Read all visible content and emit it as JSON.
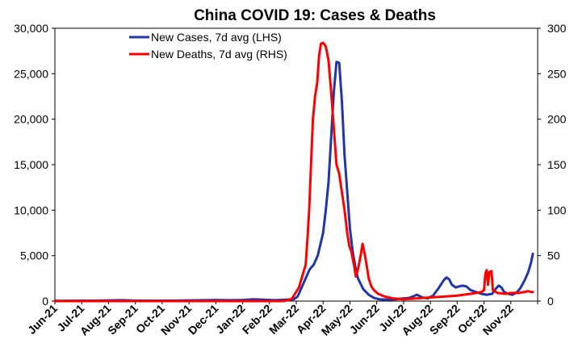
{
  "chart_data": {
    "type": "line",
    "title": "China COVID 19: Cases & Deaths",
    "x_categories": [
      "Jun-21",
      "Jul-21",
      "Aug-21",
      "Sep-21",
      "Oct-21",
      "Nov-21",
      "Dec-21",
      "Jan-22",
      "Feb-22",
      "Mar-22",
      "Apr-22",
      "May-22",
      "Jun-22",
      "Jul-22",
      "Aug-22",
      "Sep-22",
      "Oct-22",
      "Nov-22"
    ],
    "y_left": {
      "min": 0,
      "max": 30000,
      "ticks": [
        "0",
        "5,000",
        "10,000",
        "15,000",
        "20,000",
        "25,000",
        "30,000"
      ],
      "tick_values": [
        0,
        5000,
        10000,
        15000,
        20000,
        25000,
        30000
      ]
    },
    "y_right": {
      "min": 0,
      "max": 300,
      "ticks": [
        "0",
        "50",
        "100",
        "150",
        "200",
        "250",
        "300"
      ],
      "tick_values": [
        0,
        50,
        100,
        150,
        200,
        250,
        300
      ]
    },
    "legend_position": "top-left",
    "series": [
      {
        "name": "New Cases, 7d avg (LHS)",
        "axis": "left",
        "color": "#1f35a8",
        "points": [
          [
            0.0,
            30
          ],
          [
            0.5,
            30
          ],
          [
            1.0,
            40
          ],
          [
            1.5,
            50
          ],
          [
            2.0,
            80
          ],
          [
            2.5,
            100
          ],
          [
            3.0,
            60
          ],
          [
            3.5,
            50
          ],
          [
            4.0,
            40
          ],
          [
            4.5,
            60
          ],
          [
            5.0,
            80
          ],
          [
            5.5,
            100
          ],
          [
            6.0,
            120
          ],
          [
            6.5,
            100
          ],
          [
            7.0,
            120
          ],
          [
            7.4,
            200
          ],
          [
            7.8,
            150
          ],
          [
            8.2,
            100
          ],
          [
            8.6,
            150
          ],
          [
            8.9,
            200
          ],
          [
            9.05,
            500
          ],
          [
            9.2,
            1500
          ],
          [
            9.35,
            2500
          ],
          [
            9.5,
            3500
          ],
          [
            9.65,
            4000
          ],
          [
            9.8,
            5000
          ],
          [
            10.0,
            7500
          ],
          [
            10.1,
            10000
          ],
          [
            10.2,
            13000
          ],
          [
            10.3,
            18000
          ],
          [
            10.4,
            23000
          ],
          [
            10.5,
            26300
          ],
          [
            10.6,
            26200
          ],
          [
            10.7,
            22000
          ],
          [
            10.8,
            16000
          ],
          [
            10.9,
            12000
          ],
          [
            11.0,
            8000
          ],
          [
            11.1,
            5500
          ],
          [
            11.2,
            3800
          ],
          [
            11.3,
            2500
          ],
          [
            11.5,
            1300
          ],
          [
            11.7,
            700
          ],
          [
            11.9,
            350
          ],
          [
            12.1,
            200
          ],
          [
            12.4,
            150
          ],
          [
            12.7,
            200
          ],
          [
            13.0,
            300
          ],
          [
            13.2,
            350
          ],
          [
            13.3,
            450
          ],
          [
            13.5,
            700
          ],
          [
            13.7,
            400
          ],
          [
            13.9,
            300
          ],
          [
            14.1,
            600
          ],
          [
            14.3,
            1400
          ],
          [
            14.5,
            2300
          ],
          [
            14.6,
            2600
          ],
          [
            14.7,
            2400
          ],
          [
            14.8,
            1800
          ],
          [
            14.95,
            1500
          ],
          [
            15.05,
            1600
          ],
          [
            15.2,
            1700
          ],
          [
            15.35,
            1600
          ],
          [
            15.5,
            1200
          ],
          [
            15.7,
            1000
          ],
          [
            15.9,
            800
          ],
          [
            16.1,
            700
          ],
          [
            16.3,
            800
          ],
          [
            16.45,
            1400
          ],
          [
            16.55,
            1700
          ],
          [
            16.65,
            1500
          ],
          [
            16.75,
            1000
          ],
          [
            16.9,
            800
          ],
          [
            17.05,
            700
          ],
          [
            17.2,
            900
          ],
          [
            17.35,
            1400
          ],
          [
            17.5,
            2200
          ],
          [
            17.65,
            3200
          ],
          [
            17.75,
            4200
          ],
          [
            17.82,
            5200
          ]
        ]
      },
      {
        "name": "New Deaths, 7d avg (RHS)",
        "axis": "right",
        "color": "#ff0000",
        "points": [
          [
            0.0,
            0
          ],
          [
            1.0,
            0
          ],
          [
            2.0,
            0
          ],
          [
            3.0,
            0
          ],
          [
            4.0,
            0
          ],
          [
            5.0,
            0
          ],
          [
            6.0,
            0
          ],
          [
            7.0,
            0
          ],
          [
            8.0,
            0
          ],
          [
            8.5,
            0
          ],
          [
            8.7,
            1
          ],
          [
            8.85,
            3
          ],
          [
            8.95,
            8
          ],
          [
            9.1,
            15
          ],
          [
            9.2,
            25
          ],
          [
            9.35,
            40
          ],
          [
            9.42,
            70
          ],
          [
            9.48,
            100
          ],
          [
            9.55,
            150
          ],
          [
            9.62,
            200
          ],
          [
            9.7,
            225
          ],
          [
            9.78,
            240
          ],
          [
            9.85,
            270
          ],
          [
            9.92,
            283
          ],
          [
            10.0,
            284
          ],
          [
            10.1,
            280
          ],
          [
            10.2,
            265
          ],
          [
            10.3,
            230
          ],
          [
            10.4,
            190
          ],
          [
            10.5,
            150
          ],
          [
            10.6,
            140
          ],
          [
            10.7,
            120
          ],
          [
            10.8,
            100
          ],
          [
            10.9,
            75
          ],
          [
            10.98,
            60
          ],
          [
            11.05,
            55
          ],
          [
            11.15,
            40
          ],
          [
            11.22,
            27
          ],
          [
            11.3,
            35
          ],
          [
            11.4,
            50
          ],
          [
            11.47,
            63
          ],
          [
            11.55,
            52
          ],
          [
            11.62,
            40
          ],
          [
            11.7,
            25
          ],
          [
            11.8,
            16
          ],
          [
            11.9,
            12
          ],
          [
            12.05,
            8
          ],
          [
            12.3,
            5
          ],
          [
            12.6,
            3
          ],
          [
            13.0,
            2
          ],
          [
            13.5,
            3
          ],
          [
            14.0,
            4
          ],
          [
            14.5,
            5
          ],
          [
            15.0,
            6
          ],
          [
            15.5,
            8
          ],
          [
            15.9,
            10
          ],
          [
            16.0,
            12
          ],
          [
            16.05,
            30
          ],
          [
            16.1,
            34
          ],
          [
            16.15,
            18
          ],
          [
            16.2,
            32
          ],
          [
            16.28,
            33
          ],
          [
            16.33,
            12
          ],
          [
            16.5,
            9
          ],
          [
            16.8,
            8
          ],
          [
            17.0,
            9
          ],
          [
            17.3,
            9
          ],
          [
            17.5,
            10
          ],
          [
            17.65,
            11
          ],
          [
            17.75,
            10
          ],
          [
            17.82,
            10
          ]
        ]
      }
    ]
  }
}
